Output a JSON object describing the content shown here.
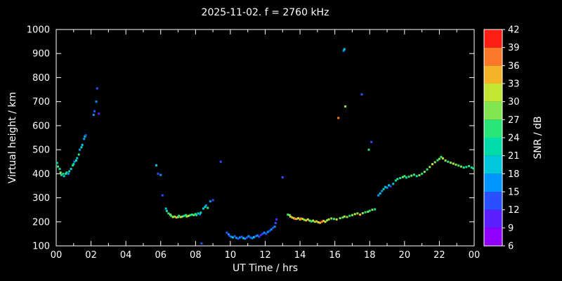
{
  "chart_data": {
    "type": "scatter",
    "title": "2025-11-02. f = 2760 kHz",
    "xlabel": "UT Time / hrs",
    "ylabel": "Virtual height / km",
    "cblabel": "SNR / dB",
    "xlim": [
      0,
      24
    ],
    "ylim": [
      100,
      1000
    ],
    "cblim": [
      6,
      42
    ],
    "x_tick_values": [
      0,
      2,
      4,
      6,
      8,
      10,
      12,
      14,
      16,
      18,
      20,
      22,
      24
    ],
    "x_tick_labels": [
      "00",
      "02",
      "04",
      "06",
      "08",
      "10",
      "12",
      "14",
      "16",
      "18",
      "20",
      "22",
      "00"
    ],
    "x_minor_values": [
      1,
      3,
      5,
      7,
      9,
      11,
      13,
      15,
      17,
      19,
      21,
      23
    ],
    "y_tick_values": [
      100,
      200,
      300,
      400,
      500,
      600,
      700,
      800,
      900,
      1000
    ],
    "cb_tick_values": [
      6,
      9,
      12,
      15,
      18,
      21,
      24,
      27,
      30,
      33,
      36,
      39,
      42
    ],
    "palette": [
      "#9000ff",
      "#5a1eff",
      "#2850ff",
      "#0096ff",
      "#00c8dc",
      "#00dcaa",
      "#28e678",
      "#82e650",
      "#c3e632",
      "#f5b428",
      "#fa7828",
      "#fa1e14"
    ],
    "background": "#000000",
    "frame_color": "#ffffff",
    "points": [
      [
        0.05,
        445,
        21
      ],
      [
        0.1,
        430,
        24
      ],
      [
        0.2,
        420,
        21
      ],
      [
        0.25,
        405,
        27
      ],
      [
        0.3,
        395,
        24
      ],
      [
        0.4,
        400,
        21
      ],
      [
        0.45,
        390,
        18
      ],
      [
        0.55,
        400,
        24
      ],
      [
        0.6,
        405,
        21
      ],
      [
        0.7,
        400,
        15
      ],
      [
        0.75,
        410,
        21
      ],
      [
        0.85,
        420,
        18
      ],
      [
        0.95,
        435,
        24
      ],
      [
        1.0,
        440,
        21
      ],
      [
        1.05,
        450,
        15
      ],
      [
        1.15,
        455,
        21
      ],
      [
        1.2,
        465,
        18
      ],
      [
        1.3,
        480,
        24
      ],
      [
        1.35,
        500,
        15
      ],
      [
        1.45,
        510,
        21
      ],
      [
        1.5,
        520,
        18
      ],
      [
        1.6,
        545,
        15
      ],
      [
        1.65,
        555,
        21
      ],
      [
        1.7,
        560,
        12
      ],
      [
        2.15,
        645,
        15
      ],
      [
        2.2,
        660,
        12
      ],
      [
        2.3,
        700,
        15
      ],
      [
        2.35,
        755,
        12
      ],
      [
        2.45,
        650,
        9
      ],
      [
        5.75,
        435,
        18
      ],
      [
        5.85,
        400,
        12
      ],
      [
        6.0,
        395,
        15
      ],
      [
        6.1,
        310,
        12
      ],
      [
        6.3,
        255,
        18
      ],
      [
        6.35,
        245,
        21
      ],
      [
        6.45,
        235,
        24
      ],
      [
        6.55,
        230,
        27
      ],
      [
        6.6,
        225,
        24
      ],
      [
        6.7,
        220,
        30
      ],
      [
        6.8,
        222,
        27
      ],
      [
        6.9,
        218,
        33
      ],
      [
        7.0,
        220,
        27
      ],
      [
        7.05,
        225,
        24
      ],
      [
        7.15,
        220,
        30
      ],
      [
        7.25,
        222,
        27
      ],
      [
        7.35,
        225,
        21
      ],
      [
        7.45,
        228,
        24
      ],
      [
        7.5,
        222,
        27
      ],
      [
        7.6,
        225,
        30
      ],
      [
        7.7,
        228,
        24
      ],
      [
        7.8,
        230,
        21
      ],
      [
        7.9,
        228,
        27
      ],
      [
        8.0,
        232,
        24
      ],
      [
        8.05,
        228,
        21
      ],
      [
        8.15,
        235,
        18
      ],
      [
        8.25,
        232,
        15
      ],
      [
        8.3,
        238,
        21
      ],
      [
        8.35,
        110,
        12
      ],
      [
        8.45,
        255,
        18
      ],
      [
        8.55,
        262,
        21
      ],
      [
        8.6,
        268,
        15
      ],
      [
        8.7,
        258,
        24
      ],
      [
        8.85,
        285,
        15
      ],
      [
        9.0,
        290,
        12
      ],
      [
        9.45,
        450,
        12
      ],
      [
        9.8,
        155,
        12
      ],
      [
        9.9,
        148,
        15
      ],
      [
        9.95,
        142,
        12
      ],
      [
        10.05,
        138,
        15
      ],
      [
        10.15,
        135,
        18
      ],
      [
        10.25,
        140,
        12
      ],
      [
        10.35,
        133,
        15
      ],
      [
        10.45,
        130,
        12
      ],
      [
        10.55,
        135,
        15
      ],
      [
        10.65,
        138,
        12
      ],
      [
        10.75,
        132,
        18
      ],
      [
        10.85,
        130,
        15
      ],
      [
        10.95,
        135,
        12
      ],
      [
        11.05,
        140,
        15
      ],
      [
        11.15,
        135,
        12
      ],
      [
        11.25,
        132,
        15
      ],
      [
        11.35,
        136,
        18
      ],
      [
        11.45,
        140,
        12
      ],
      [
        11.55,
        143,
        15
      ],
      [
        11.65,
        138,
        12
      ],
      [
        11.75,
        145,
        9
      ],
      [
        11.85,
        150,
        12
      ],
      [
        11.95,
        155,
        15
      ],
      [
        12.05,
        150,
        12
      ],
      [
        12.15,
        158,
        15
      ],
      [
        12.25,
        162,
        12
      ],
      [
        12.35,
        168,
        15
      ],
      [
        12.45,
        175,
        12
      ],
      [
        12.55,
        180,
        15
      ],
      [
        12.6,
        195,
        12
      ],
      [
        12.65,
        210,
        9
      ],
      [
        13.0,
        385,
        12
      ],
      [
        13.3,
        230,
        24
      ],
      [
        13.4,
        228,
        27
      ],
      [
        13.45,
        222,
        30
      ],
      [
        13.55,
        218,
        33
      ],
      [
        13.65,
        215,
        30
      ],
      [
        13.7,
        213,
        36
      ],
      [
        13.8,
        212,
        33
      ],
      [
        13.9,
        215,
        30
      ],
      [
        14.0,
        210,
        33
      ],
      [
        14.05,
        214,
        36
      ],
      [
        14.15,
        212,
        30
      ],
      [
        14.25,
        208,
        27
      ],
      [
        14.35,
        206,
        33
      ],
      [
        14.45,
        210,
        30
      ],
      [
        14.55,
        205,
        27
      ],
      [
        14.65,
        202,
        24
      ],
      [
        14.75,
        205,
        30
      ],
      [
        14.85,
        200,
        27
      ],
      [
        14.95,
        202,
        33
      ],
      [
        15.05,
        198,
        30
      ],
      [
        15.15,
        196,
        33
      ],
      [
        15.25,
        200,
        36
      ],
      [
        15.35,
        204,
        33
      ],
      [
        15.45,
        200,
        30
      ],
      [
        15.55,
        206,
        27
      ],
      [
        15.65,
        210,
        30
      ],
      [
        15.8,
        214,
        27
      ],
      [
        15.95,
        212,
        24
      ],
      [
        16.1,
        210,
        30
      ],
      [
        16.2,
        632,
        36
      ],
      [
        16.5,
        912,
        15
      ],
      [
        16.55,
        918,
        18
      ],
      [
        16.6,
        680,
        27
      ],
      [
        16.3,
        215,
        27
      ],
      [
        16.45,
        218,
        24
      ],
      [
        16.55,
        222,
        30
      ],
      [
        16.7,
        220,
        27
      ],
      [
        16.85,
        225,
        24
      ],
      [
        17.0,
        228,
        27
      ],
      [
        17.15,
        232,
        30
      ],
      [
        17.3,
        235,
        27
      ],
      [
        17.45,
        230,
        33
      ],
      [
        17.6,
        236,
        27
      ],
      [
        17.75,
        240,
        24
      ],
      [
        17.9,
        242,
        27
      ],
      [
        18.0,
        246,
        24
      ],
      [
        18.15,
        250,
        27
      ],
      [
        18.3,
        252,
        21
      ],
      [
        17.55,
        730,
        12
      ],
      [
        17.95,
        500,
        24
      ],
      [
        18.1,
        532,
        12
      ],
      [
        18.5,
        310,
        15
      ],
      [
        18.6,
        318,
        18
      ],
      [
        18.7,
        328,
        15
      ],
      [
        18.8,
        336,
        21
      ],
      [
        18.9,
        345,
        18
      ],
      [
        19.0,
        342,
        15
      ],
      [
        19.1,
        352,
        18
      ],
      [
        19.2,
        348,
        12
      ],
      [
        19.35,
        358,
        18
      ],
      [
        19.5,
        372,
        21
      ],
      [
        19.6,
        378,
        24
      ],
      [
        19.75,
        382,
        21
      ],
      [
        19.9,
        386,
        27
      ],
      [
        20.0,
        390,
        24
      ],
      [
        20.1,
        384,
        21
      ],
      [
        20.25,
        388,
        24
      ],
      [
        20.4,
        392,
        27
      ],
      [
        20.55,
        396,
        24
      ],
      [
        20.7,
        390,
        21
      ],
      [
        20.85,
        394,
        27
      ],
      [
        21.0,
        400,
        24
      ],
      [
        21.15,
        408,
        27
      ],
      [
        21.3,
        418,
        24
      ],
      [
        21.45,
        428,
        27
      ],
      [
        21.6,
        440,
        30
      ],
      [
        21.75,
        448,
        27
      ],
      [
        21.9,
        456,
        24
      ],
      [
        22.0,
        462,
        27
      ],
      [
        22.1,
        470,
        24
      ],
      [
        22.2,
        464,
        30
      ],
      [
        22.35,
        455,
        27
      ],
      [
        22.5,
        450,
        24
      ],
      [
        22.65,
        446,
        27
      ],
      [
        22.8,
        442,
        30
      ],
      [
        22.95,
        438,
        27
      ],
      [
        23.1,
        434,
        24
      ],
      [
        23.25,
        430,
        27
      ],
      [
        23.4,
        426,
        24
      ],
      [
        23.55,
        428,
        21
      ],
      [
        23.7,
        432,
        24
      ],
      [
        23.85,
        426,
        21
      ],
      [
        23.95,
        422,
        24
      ]
    ]
  }
}
